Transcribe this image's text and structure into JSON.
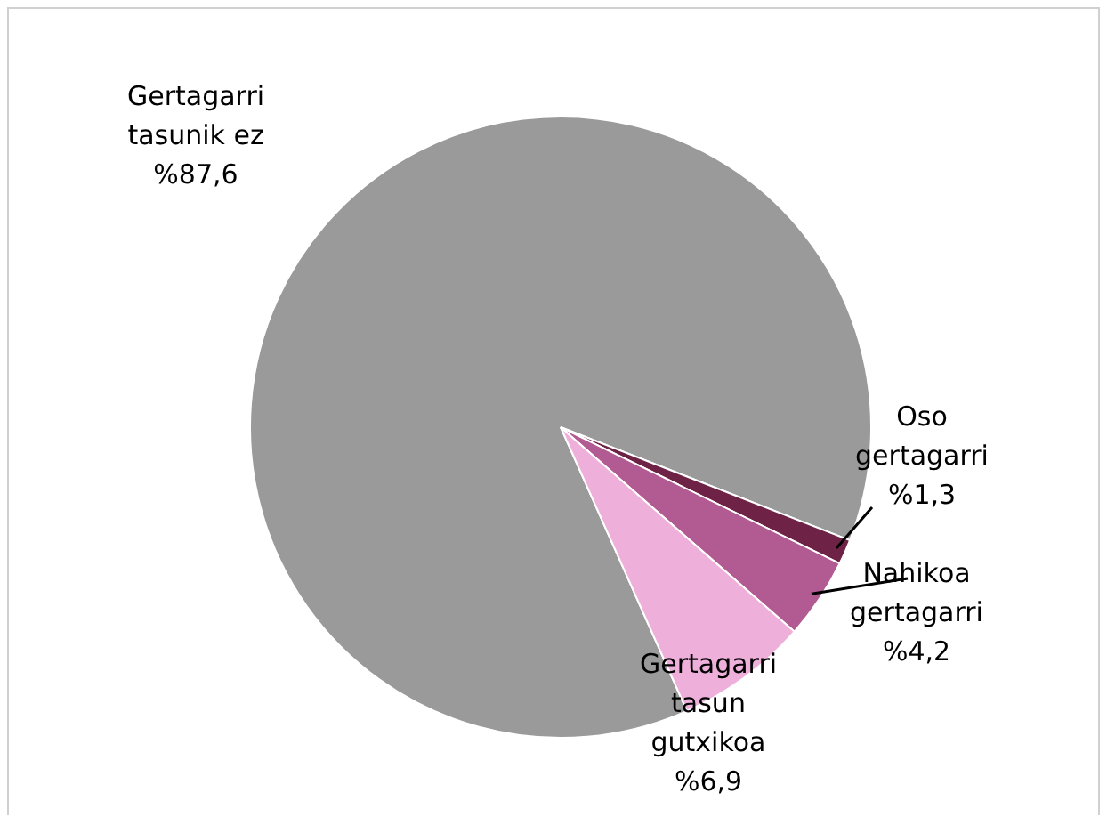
{
  "chart_data": {
    "type": "pie",
    "categories": [
      "Gertagarri tasunik ez",
      "Oso gertagarri",
      "Nahikoa gertagarri",
      "Gertagarri tasun gutxikoa"
    ],
    "values": [
      87.6,
      1.3,
      4.2,
      6.9
    ],
    "colors": [
      "#9a9a9a",
      "#6e2346",
      "#b25a92",
      "#eeb0da"
    ],
    "value_labels": [
      "%87,6",
      "%1,3",
      "%4,2",
      "%6,9"
    ],
    "legend": false
  }
}
